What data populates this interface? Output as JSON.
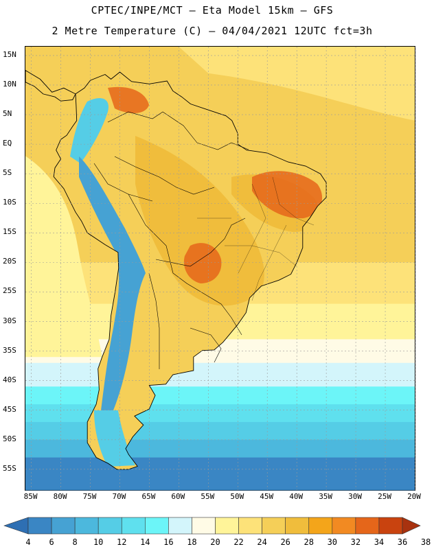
{
  "header": {
    "line1": "CPTEC/INPE/MCT –  Eta Model 15km – GFS",
    "line2": "2 Metre Temperature (C) – 04/04/2021 12UTC fct=3h"
  },
  "axes": {
    "lat_labels": [
      "15N",
      "10N",
      "5N",
      "EQ",
      "5S",
      "10S",
      "15S",
      "20S",
      "25S",
      "30S",
      "35S",
      "40S",
      "45S",
      "50S",
      "55S"
    ],
    "lat_values": [
      15,
      10,
      5,
      0,
      -5,
      -10,
      -15,
      -20,
      -25,
      -30,
      -35,
      -40,
      -45,
      -50,
      -55
    ],
    "lon_labels": [
      "85W",
      "80W",
      "75W",
      "70W",
      "65W",
      "60W",
      "55W",
      "50W",
      "45W",
      "40W",
      "35W",
      "30W",
      "25W",
      "20W"
    ],
    "lon_values": [
      -85,
      -80,
      -75,
      -70,
      -65,
      -60,
      -55,
      -50,
      -45,
      -40,
      -35,
      -30,
      -25,
      -20
    ],
    "lat_range": [
      -58.5,
      16.5
    ],
    "lon_range": [
      -86,
      -20
    ]
  },
  "legend": {
    "labels": [
      "4",
      "6",
      "8",
      "10",
      "12",
      "14",
      "16",
      "18",
      "20",
      "22",
      "24",
      "26",
      "28",
      "30",
      "32",
      "34",
      "36",
      "38"
    ],
    "colors": [
      "#2e6fb3",
      "#3a86c4",
      "#46a2d3",
      "#4cb8dd",
      "#55cde6",
      "#5fe0ee",
      "#6cf5f8",
      "#d3f5fb",
      "#fffbe6",
      "#fff499",
      "#fde279",
      "#f5cf58",
      "#f0bd3c",
      "#f4a51a",
      "#f28a22",
      "#e5661a",
      "#c9430f",
      "#a8320f"
    ]
  },
  "map": {
    "variable": "2 Metre Temperature",
    "unit": "C",
    "features": [
      "ocean-temperature-field",
      "land-temperature-field",
      "andes-cold-band",
      "country-borders",
      "state-borders",
      "graticule"
    ]
  },
  "colors": {
    "frame": "#000000",
    "grid": "#9a9a9a",
    "border_line": "#000000"
  }
}
